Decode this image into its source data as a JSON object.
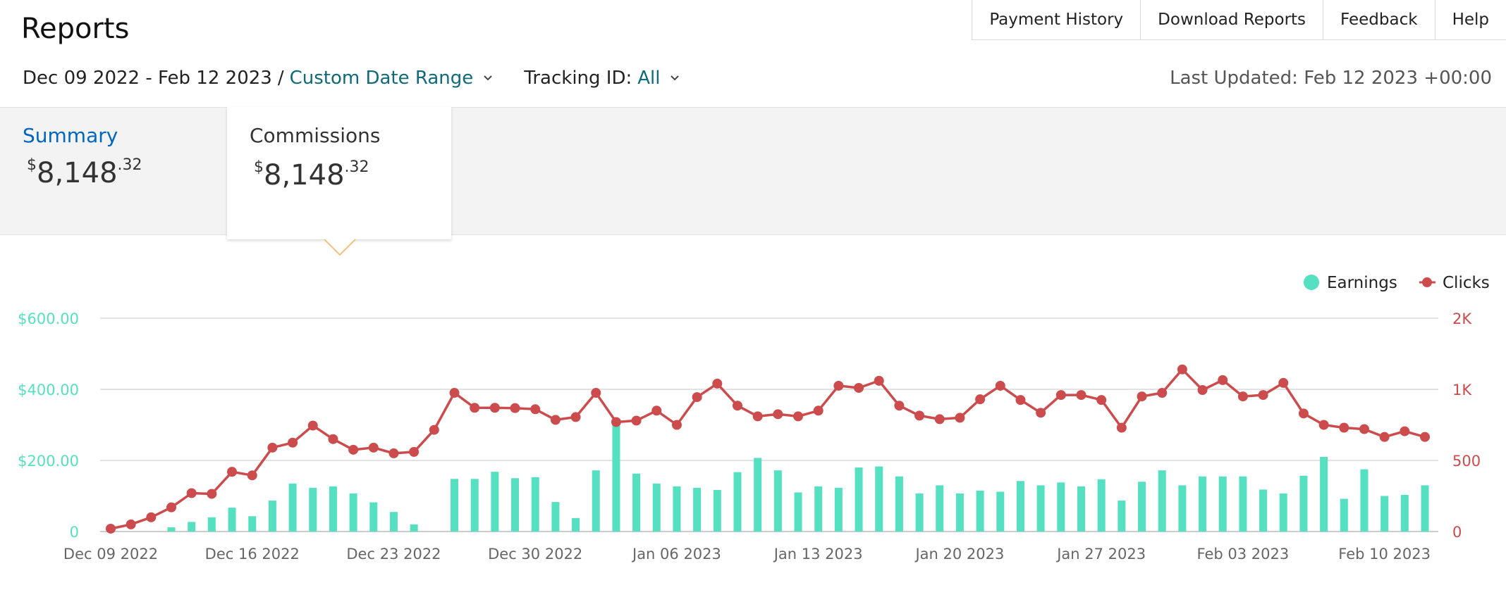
{
  "header": {
    "title": "Reports",
    "nav": [
      "Payment History",
      "Download Reports",
      "Feedback",
      "Help"
    ]
  },
  "filters": {
    "date_range": "Dec 09 2022 - Feb 12 2023",
    "separator": "/",
    "range_type": "Custom Date Range",
    "tracking_label": "Tracking ID:",
    "tracking_value": "All"
  },
  "last_updated": "Last Updated: Feb 12 2023 +00:00",
  "summary": {
    "label": "Summary",
    "currency": "$",
    "amount_whole": "8,148",
    "amount_cents": ".32"
  },
  "commissions": {
    "label": "Commissions",
    "currency": "$",
    "amount_whole": "8,148",
    "amount_cents": ".32"
  },
  "colors": {
    "earnings": "#55e0c1",
    "clicks": "#cc4b4c",
    "link": "#0f6b7a",
    "summary_link": "#0066c0",
    "pointer": "#f0c27b"
  },
  "chart_data": {
    "type": "bar",
    "legend": [
      "Earnings",
      "Clicks"
    ],
    "legend_position": "top-right",
    "x_ticks": [
      "Dec 09 2022",
      "Dec 16 2022",
      "Dec 23 2022",
      "Dec 30 2022",
      "Jan 06 2023",
      "Jan 13 2023",
      "Jan 20 2023",
      "Jan 27 2023",
      "Feb 03 2023",
      "Feb 10 2023"
    ],
    "y_left_ticks": [
      "0",
      "$200.00",
      "$400.00",
      "$600.00"
    ],
    "y_left_range": [
      0,
      600
    ],
    "y_right_ticks": [
      "0",
      "500",
      "1K",
      "2K"
    ],
    "y_right_values": [
      0,
      500,
      1000,
      1500
    ],
    "grid": true,
    "series": [
      {
        "name": "Earnings",
        "type": "bar",
        "axis": "left",
        "values": [
          0,
          0,
          0,
          12,
          27,
          40,
          67,
          43,
          87,
          135,
          123,
          127,
          107,
          82,
          55,
          20,
          0,
          148,
          148,
          168,
          150,
          153,
          83,
          38,
          172,
          305,
          163,
          135,
          127,
          123,
          117,
          167,
          207,
          172,
          110,
          127,
          123,
          180,
          183,
          155,
          107,
          130,
          107,
          115,
          112,
          142,
          130,
          138,
          127,
          147,
          87,
          140,
          172,
          130,
          155,
          155,
          155,
          118,
          107,
          157,
          210,
          92,
          175,
          100,
          103,
          130
        ]
      },
      {
        "name": "Clicks",
        "type": "line",
        "axis": "right",
        "values": [
          20,
          50,
          100,
          170,
          270,
          265,
          420,
          395,
          590,
          625,
          745,
          650,
          575,
          590,
          550,
          560,
          715,
          975,
          870,
          870,
          868,
          860,
          785,
          805,
          975,
          770,
          780,
          850,
          750,
          945,
          1040,
          885,
          810,
          825,
          810,
          850,
          1025,
          1010,
          1060,
          885,
          815,
          790,
          800,
          930,
          1025,
          925,
          835,
          960,
          960,
          925,
          730,
          950,
          975,
          1140,
          995,
          1065,
          950,
          960,
          1045,
          830,
          750,
          730,
          720,
          665,
          705,
          665
        ]
      }
    ]
  }
}
